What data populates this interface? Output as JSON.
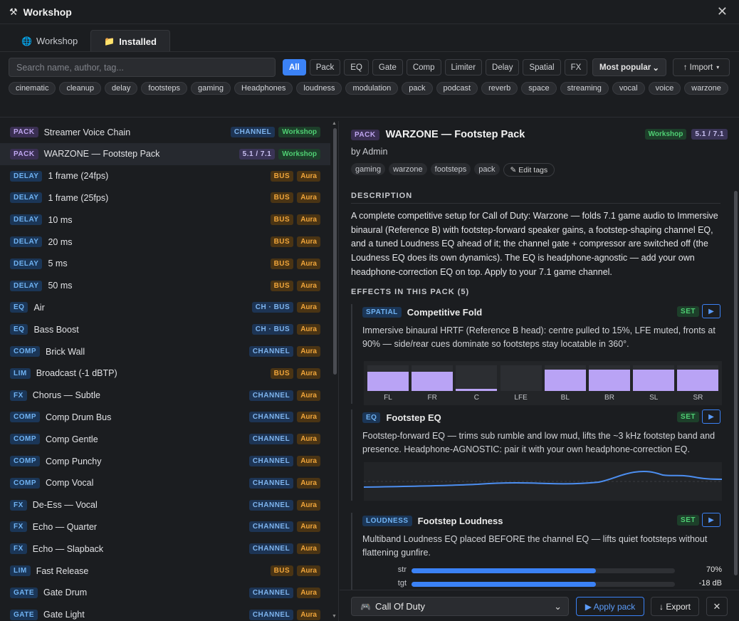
{
  "window": {
    "title": "Workshop",
    "icon": "tools-icon"
  },
  "tabs": [
    {
      "label": "Workshop",
      "icon": "globe-icon",
      "active": false
    },
    {
      "label": "Installed",
      "icon": "folder-icon",
      "active": true
    }
  ],
  "search": {
    "placeholder": "Search name, author, tag...",
    "value": ""
  },
  "filters": [
    "All",
    "Pack",
    "EQ",
    "Gate",
    "Comp",
    "Limiter",
    "Delay",
    "Spatial",
    "FX"
  ],
  "active_filter": "All",
  "sort": {
    "selected": "Most popular"
  },
  "import_label": "↑ Import",
  "tag_cloud": [
    "cinematic",
    "cleanup",
    "delay",
    "footsteps",
    "gaming",
    "Headphones",
    "loudness",
    "modulation",
    "pack",
    "podcast",
    "reverb",
    "space",
    "streaming",
    "vocal",
    "voice",
    "warzone"
  ],
  "presets": [
    {
      "type": "PACK",
      "name": "Streamer Voice Chain",
      "target": "CHANNEL",
      "source": "Workshop"
    },
    {
      "type": "PACK",
      "name": "WARZONE — Footstep Pack",
      "target": "5.1 / 7.1",
      "source": "Workshop",
      "selected": true
    },
    {
      "type": "DELAY",
      "name": "1 frame (24fps)",
      "target": "BUS",
      "source": "Aura"
    },
    {
      "type": "DELAY",
      "name": "1 frame (25fps)",
      "target": "BUS",
      "source": "Aura"
    },
    {
      "type": "DELAY",
      "name": "10 ms",
      "target": "BUS",
      "source": "Aura"
    },
    {
      "type": "DELAY",
      "name": "20 ms",
      "target": "BUS",
      "source": "Aura"
    },
    {
      "type": "DELAY",
      "name": "5 ms",
      "target": "BUS",
      "source": "Aura"
    },
    {
      "type": "DELAY",
      "name": "50 ms",
      "target": "BUS",
      "source": "Aura"
    },
    {
      "type": "EQ",
      "name": "Air",
      "target": "CH · BUS",
      "source": "Aura"
    },
    {
      "type": "EQ",
      "name": "Bass Boost",
      "target": "CH · BUS",
      "source": "Aura"
    },
    {
      "type": "COMP",
      "name": "Brick Wall",
      "target": "CHANNEL",
      "source": "Aura"
    },
    {
      "type": "LIM",
      "name": "Broadcast (-1 dBTP)",
      "target": "BUS",
      "source": "Aura"
    },
    {
      "type": "FX",
      "name": "Chorus — Subtle",
      "target": "CHANNEL",
      "source": "Aura"
    },
    {
      "type": "COMP",
      "name": "Comp Drum Bus",
      "target": "CHANNEL",
      "source": "Aura"
    },
    {
      "type": "COMP",
      "name": "Comp Gentle",
      "target": "CHANNEL",
      "source": "Aura"
    },
    {
      "type": "COMP",
      "name": "Comp Punchy",
      "target": "CHANNEL",
      "source": "Aura"
    },
    {
      "type": "COMP",
      "name": "Comp Vocal",
      "target": "CHANNEL",
      "source": "Aura"
    },
    {
      "type": "FX",
      "name": "De-Ess — Vocal",
      "target": "CHANNEL",
      "source": "Aura"
    },
    {
      "type": "FX",
      "name": "Echo — Quarter",
      "target": "CHANNEL",
      "source": "Aura"
    },
    {
      "type": "FX",
      "name": "Echo — Slapback",
      "target": "CHANNEL",
      "source": "Aura"
    },
    {
      "type": "LIM",
      "name": "Fast Release",
      "target": "BUS",
      "source": "Aura"
    },
    {
      "type": "GATE",
      "name": "Gate Drum",
      "target": "CHANNEL",
      "source": "Aura"
    },
    {
      "type": "GATE",
      "name": "Gate Light",
      "target": "CHANNEL",
      "source": "Aura"
    }
  ],
  "detail": {
    "type": "PACK",
    "title": "WARZONE — Footstep Pack",
    "source": "Workshop",
    "format": "5.1 / 7.1",
    "author": "by Admin",
    "tags": [
      "gaming",
      "warzone",
      "footsteps",
      "pack"
    ],
    "edit_tags_label": "✎ Edit tags",
    "description_heading": "DESCRIPTION",
    "description": "A complete competitive setup for Call of Duty: Warzone — folds 7.1 game audio to Immersive binaural (Reference B) with footstep-forward speaker gains, a footstep-shaping channel EQ, and a tuned Loudness EQ ahead of it; the channel gate + compressor are switched off (the Loudness EQ does its own dynamics). The EQ is headphone-agnostic — add your own headphone-correction EQ on top. Apply to your 7.1 game channel.",
    "effects_heading": "EFFECTS IN THIS PACK (5)",
    "effects": [
      {
        "type": "SPATIAL",
        "name": "Competitive Fold",
        "status": "SET",
        "description": "Immersive binaural HRTF (Reference B head): centre pulled to 15%, LFE muted, fronts at 90% — side/rear cues dominate so footsteps stay locatable in 360°."
      },
      {
        "type": "EQ",
        "name": "Footstep EQ",
        "status": "SET",
        "description": "Footstep-forward EQ — trims sub rumble and low mud, lifts the ~3 kHz footstep band and presence. Headphone-AGNOSTIC: pair it with your own headphone-correction EQ."
      },
      {
        "type": "LOUDNESS",
        "name": "Footstep Loudness",
        "status": "SET",
        "description": "Multiband Loudness EQ placed BEFORE the channel EQ — lifts quiet footsteps without flattening gunfire."
      }
    ],
    "speaker_gains": [
      {
        "label": "FL",
        "level": 0.9
      },
      {
        "label": "FR",
        "level": 0.9
      },
      {
        "label": "C",
        "level": 0.15
      },
      {
        "label": "LFE",
        "level": 0
      },
      {
        "label": "BL",
        "level": 1.0
      },
      {
        "label": "BR",
        "level": 1.0
      },
      {
        "label": "SL",
        "level": 1.0
      },
      {
        "label": "SR",
        "level": 1.0
      }
    ],
    "loudness_params": [
      {
        "label": "str",
        "value": "70%",
        "level": 0.7
      },
      {
        "label": "tgt",
        "value": "-18 dB",
        "level": 0.7
      }
    ]
  },
  "footer": {
    "game": "Call Of Duty",
    "apply_label": "▶ Apply pack",
    "export_label": "↓ Export"
  },
  "colors": {
    "accent": "#3b82f6",
    "workshop": "#4fcf73",
    "aura": "#f0a53a",
    "spatial": "#b9a3f5"
  }
}
